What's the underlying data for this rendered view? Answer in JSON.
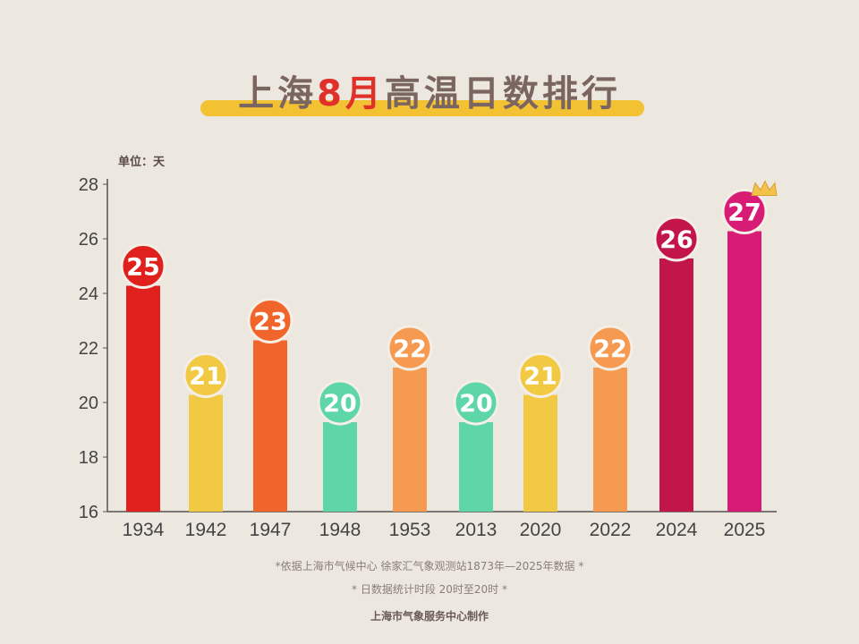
{
  "title": {
    "part1": "上海",
    "highlight": "8月",
    "part2": "高温日数排行"
  },
  "unit": "单位：天",
  "chart_data": {
    "type": "bar",
    "title": "上海8月高温日数排行",
    "ylabel": "单位：天",
    "ylim": [
      16,
      28
    ],
    "yticks": [
      16,
      18,
      20,
      22,
      24,
      26,
      28
    ],
    "grid": false,
    "categories": [
      "1934",
      "1942",
      "1947",
      "1948",
      "1953",
      "2013",
      "2020",
      "2022",
      "2024",
      "2025"
    ],
    "values": [
      25,
      21,
      23,
      20,
      22,
      20,
      21,
      22,
      26,
      27
    ],
    "colors": [
      "#e0201c",
      "#f2c942",
      "#f2652a",
      "#5fd6a8",
      "#f59a50",
      "#5fd6a8",
      "#f2c942",
      "#f59a50",
      "#c2154a",
      "#d81b74"
    ],
    "annotation_icon": "crown-icon"
  },
  "footer": {
    "note1": "*依据上海市气候中心 徐家汇气象观测站1873年—2025年数据 *",
    "note2": "* 日数据统计时段 20时至20时 *",
    "credit": "上海市气象服务中心制作"
  }
}
